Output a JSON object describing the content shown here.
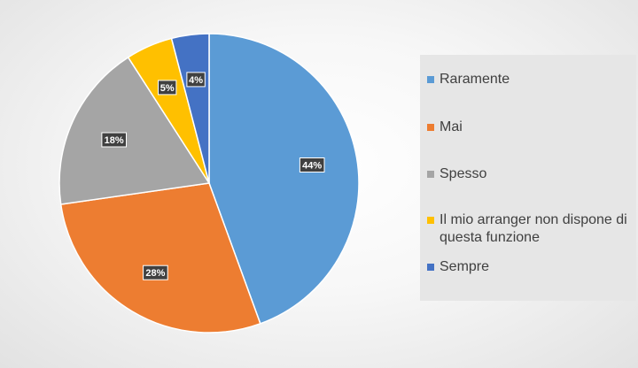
{
  "chart_data": {
    "type": "pie",
    "slices": [
      {
        "label": "Raramente",
        "value": 44,
        "data_label": "44%",
        "color": "#5b9bd5"
      },
      {
        "label": "Mai",
        "value": 28,
        "data_label": "28%",
        "color": "#ed7d31"
      },
      {
        "label": "Spesso",
        "value": 18,
        "data_label": "18%",
        "color": "#a5a5a5"
      },
      {
        "label": "Il mio arranger non dispone di questa funzione",
        "value": 5,
        "data_label": "5%",
        "color": "#ffc000"
      },
      {
        "label": "Sempre",
        "value": 4,
        "data_label": "4%",
        "color": "#4472c4"
      }
    ],
    "legend_position": "right"
  }
}
